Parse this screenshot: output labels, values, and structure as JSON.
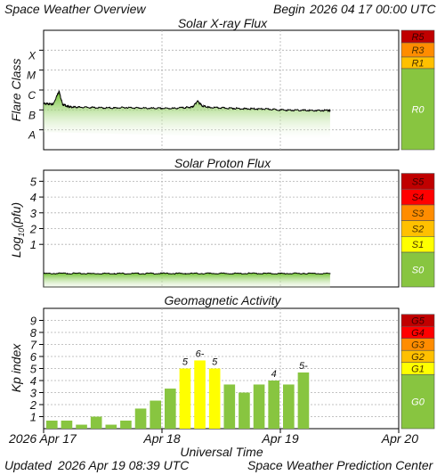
{
  "header": {
    "title": "Space Weather Overview",
    "begin_label": "Begin",
    "begin_value": "2026 04 17 00:00 UTC"
  },
  "footer": {
    "updated_label": "Updated",
    "updated_value": "2026 Apr 19 08:39 UTC",
    "source": "Space Weather Prediction Center"
  },
  "time_axis": {
    "label": "Universal Time",
    "ticks": [
      {
        "day": 0,
        "label": "2026 Apr 17"
      },
      {
        "day": 1,
        "label": "Apr 18"
      },
      {
        "day": 2,
        "label": "Apr 19"
      },
      {
        "day": 3,
        "label": "Apr 20"
      }
    ]
  },
  "colors": {
    "line": "#000000",
    "green": "#88c540",
    "extreme": "#c00000",
    "severe": "#ff0000",
    "strong": "#ff8c00",
    "moderate": "#ffc000",
    "minor": "#ffff00",
    "grid": "#b0b0b0"
  },
  "chart_data": [
    {
      "type": "area",
      "title": "Solar X-ray Flux",
      "ylabel": "Flare Class",
      "y_ticks": [
        "A",
        "B",
        "C",
        "M",
        "X"
      ],
      "xlim": [
        0,
        3
      ],
      "ylim": [
        0,
        6
      ],
      "grid": true,
      "x": [
        0.0,
        0.04,
        0.08,
        0.13,
        0.16,
        0.2,
        0.24,
        0.3,
        0.4,
        0.5,
        0.6,
        0.7,
        0.8,
        0.9,
        1.0,
        1.1,
        1.2,
        1.26,
        1.3,
        1.34,
        1.4,
        1.5,
        1.6,
        1.7,
        1.8,
        1.9,
        2.0,
        2.1,
        2.2,
        2.3,
        2.4,
        2.42
      ],
      "y": [
        2.32,
        2.3,
        2.28,
        2.95,
        2.28,
        2.18,
        2.14,
        2.14,
        2.12,
        2.1,
        2.1,
        2.12,
        2.1,
        2.08,
        2.08,
        2.08,
        2.12,
        2.15,
        2.45,
        2.2,
        2.12,
        2.1,
        2.08,
        2.06,
        2.05,
        2.04,
        2.0,
        1.98,
        1.98,
        1.96,
        1.98,
        1.96
      ],
      "scale_labels": [
        {
          "label": "R5",
          "level": "extreme"
        },
        {
          "label": "R3",
          "level": "strong"
        },
        {
          "label": "R1",
          "level": "moderate"
        },
        {
          "label": "R0",
          "level": "none"
        }
      ]
    },
    {
      "type": "area",
      "title": "Solar Proton Flux",
      "ylabel": "Log10(pfu)",
      "ylabel_main": "Log",
      "ylabel_sub": "10",
      "ylabel_tail": "(pfu)",
      "y_ticks": [
        "1",
        "2",
        "3",
        "4",
        "5"
      ],
      "xlim": [
        0,
        3
      ],
      "ylim": [
        -1.7,
        5.7
      ],
      "grid": true,
      "x": [
        0.0,
        0.2,
        0.4,
        0.6,
        0.8,
        1.0,
        1.2,
        1.4,
        1.6,
        1.8,
        2.0,
        2.2,
        2.42
      ],
      "y": [
        -0.85,
        -0.84,
        -0.85,
        -0.84,
        -0.85,
        -0.84,
        -0.85,
        -0.84,
        -0.85,
        -0.84,
        -0.85,
        -0.84,
        -0.85
      ],
      "scale_labels": [
        {
          "label": "S5",
          "level": "extreme"
        },
        {
          "label": "S4",
          "level": "severe"
        },
        {
          "label": "S3",
          "level": "strong"
        },
        {
          "label": "S2",
          "level": "moderate"
        },
        {
          "label": "S1",
          "level": "minor"
        },
        {
          "label": "S0",
          "level": "none"
        }
      ]
    },
    {
      "type": "bar",
      "title": "Geomagnetic Activity",
      "ylabel": "Kp index",
      "y_ticks": [
        "1",
        "2",
        "3",
        "4",
        "5",
        "6",
        "7",
        "8",
        "9"
      ],
      "xlim": [
        0,
        3
      ],
      "ylim": [
        0,
        10
      ],
      "grid": true,
      "bar_width_days": 0.125,
      "values": [
        0.67,
        0.67,
        0.33,
        1.0,
        0.33,
        0.67,
        1.67,
        2.33,
        3.33,
        5.0,
        5.67,
        5.0,
        3.67,
        3.0,
        3.67,
        4.0,
        3.67,
        4.67
      ],
      "bar_labels": [
        "",
        "",
        "",
        "",
        "",
        "",
        "",
        "",
        "",
        "5",
        "6-",
        "5",
        "",
        "",
        "",
        "4",
        "",
        "5-"
      ],
      "storm_threshold": 5.0,
      "scale_labels": [
        {
          "label": "G5",
          "level": "extreme"
        },
        {
          "label": "G4",
          "level": "severe"
        },
        {
          "label": "G3",
          "level": "strong"
        },
        {
          "label": "G2",
          "level": "moderate"
        },
        {
          "label": "G1",
          "level": "minor"
        },
        {
          "label": "G0",
          "level": "none"
        }
      ]
    }
  ]
}
